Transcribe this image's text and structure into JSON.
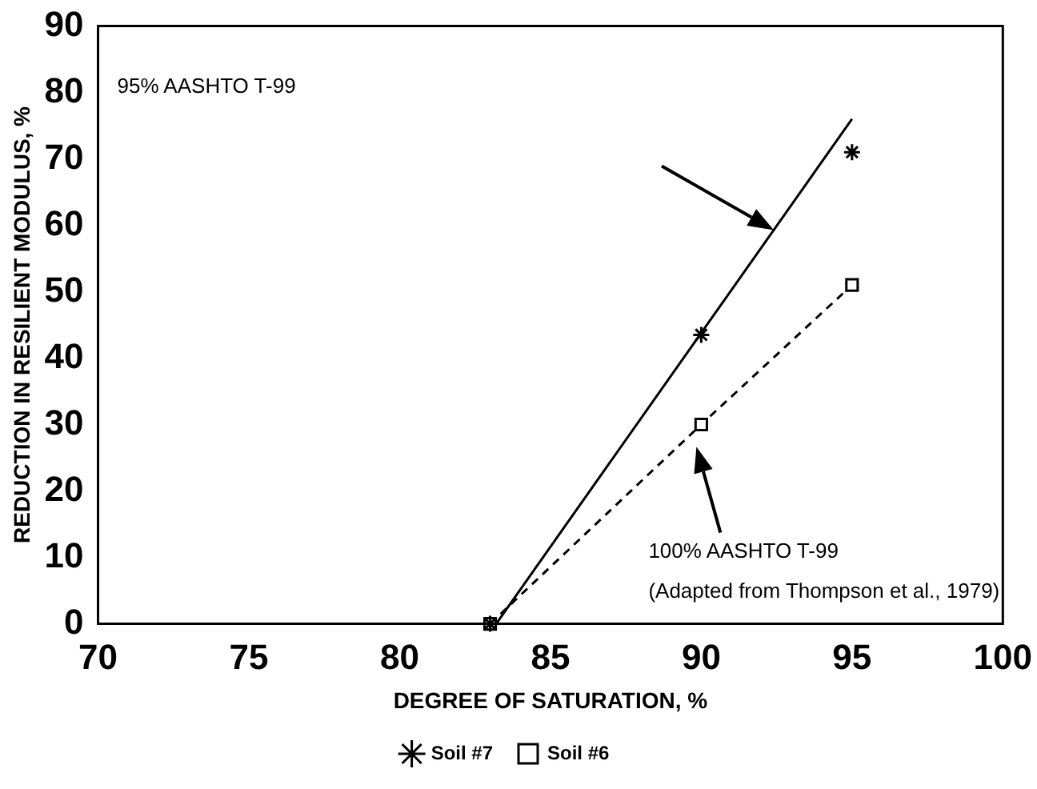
{
  "chart_data": {
    "type": "scatter",
    "xlabel": "DEGREE OF SATURATION, %",
    "ylabel": "REDUCTION IN RESILIENT MODULUS, %",
    "xlim": [
      70,
      100
    ],
    "xticks": [
      70,
      75,
      80,
      85,
      90,
      95,
      100
    ],
    "ylim": [
      0,
      90
    ],
    "yticks": [
      0,
      10,
      20,
      30,
      40,
      50,
      60,
      70,
      80,
      90
    ],
    "grid": false,
    "legend": "bottom",
    "series": [
      {
        "name": "Soil #7",
        "color": "#000000",
        "marker": "cross",
        "x": [
          83,
          90,
          95
        ],
        "values": [
          0,
          43.5,
          71
        ]
      },
      {
        "name": "Soil #6",
        "type": "line",
        "color": "#000000",
        "marker": "square",
        "line_style": "dashed",
        "x": [
          83,
          90,
          95
        ],
        "values": [
          0,
          30,
          51
        ]
      },
      {
        "type": "line",
        "color": "#000000",
        "marker": "none",
        "line_style": "solid",
        "x": [
          83.2,
          95
        ],
        "values": [
          0,
          76
        ]
      }
    ],
    "annotations": [
      "95% AASHTO T-99",
      "100% AASHTO T-99",
      "(Adapted from Thompson et al., 1979)"
    ]
  }
}
